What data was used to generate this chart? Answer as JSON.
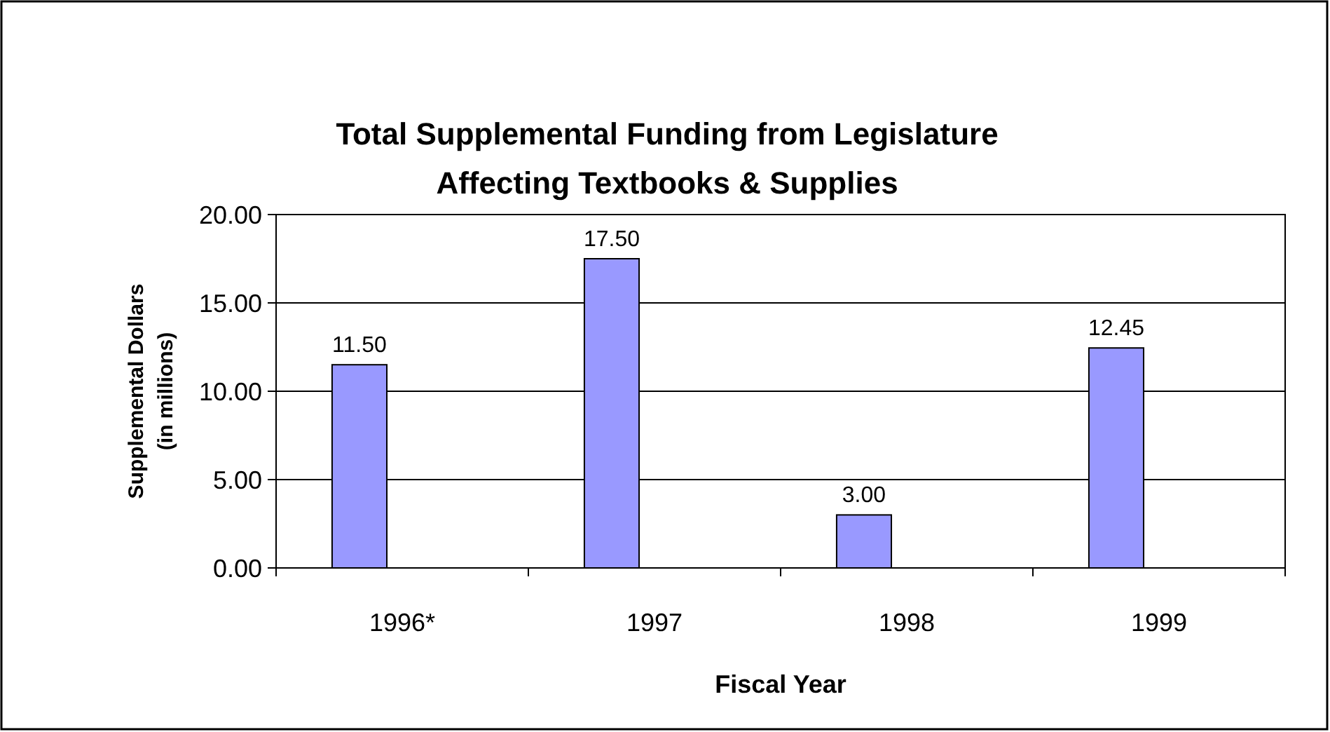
{
  "chart_data": {
    "type": "bar",
    "title": "Total Supplemental Funding from Legislature\nAffecting Textbooks & Supplies",
    "xlabel": "Fiscal Year",
    "ylabel": "Supplemental Dollars\n(in millions)",
    "categories": [
      "1996*",
      "1997",
      "1998",
      "1999"
    ],
    "values": [
      11.5,
      17.5,
      3.0,
      12.45
    ],
    "value_labels": [
      "11.50",
      "17.50",
      "3.00",
      "12.45"
    ],
    "color": "#9999ff",
    "ylim": [
      0,
      20
    ],
    "yticks": [
      {
        "value": 0,
        "label": "0.00"
      },
      {
        "value": 5,
        "label": "5.00"
      },
      {
        "value": 10,
        "label": "10.00"
      },
      {
        "value": 15,
        "label": "15.00"
      },
      {
        "value": 20,
        "label": "20.00"
      }
    ],
    "grid": "y"
  }
}
